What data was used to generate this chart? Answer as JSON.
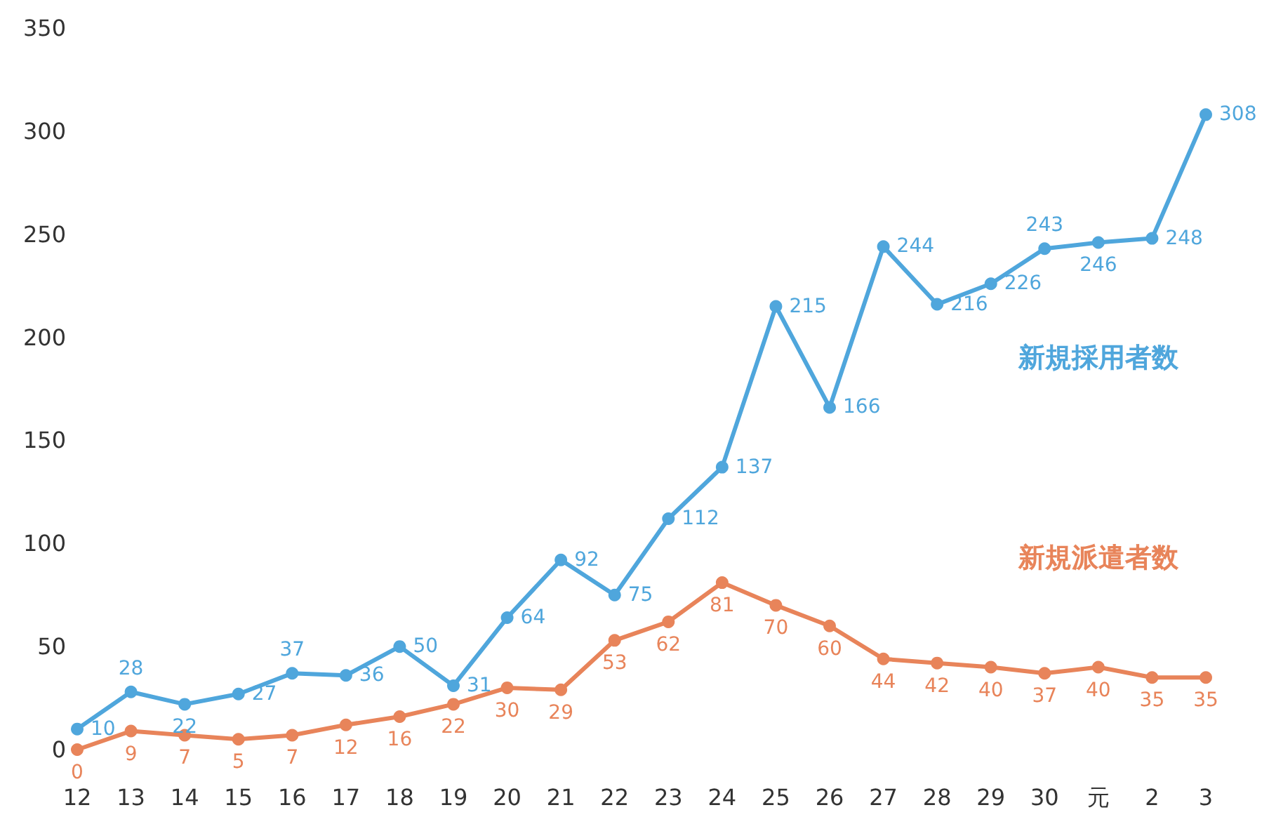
{
  "chart_data": {
    "type": "line",
    "categories": [
      "12",
      "13",
      "14",
      "15",
      "16",
      "17",
      "18",
      "19",
      "20",
      "21",
      "22",
      "23",
      "24",
      "25",
      "26",
      "27",
      "28",
      "29",
      "30",
      "元",
      "2",
      "3"
    ],
    "series": [
      {
        "name": "新規採用者数",
        "color": "#4fa6dc",
        "values": [
          10,
          28,
          22,
          27,
          37,
          36,
          50,
          31,
          64,
          92,
          75,
          112,
          137,
          215,
          166,
          244,
          216,
          226,
          243,
          246,
          248,
          308
        ]
      },
      {
        "name": "新規派遣者数",
        "color": "#e8845a",
        "values": [
          0,
          9,
          7,
          5,
          7,
          12,
          16,
          22,
          30,
          29,
          53,
          62,
          81,
          70,
          60,
          44,
          42,
          40,
          37,
          40,
          35,
          35
        ]
      }
    ],
    "ylim": [
      0,
      350
    ],
    "yticks": [
      0,
      50,
      100,
      150,
      200,
      250,
      300,
      350
    ],
    "grid": false,
    "legend": false,
    "marker": "circle",
    "line_style": "solid",
    "data_labels": true
  }
}
